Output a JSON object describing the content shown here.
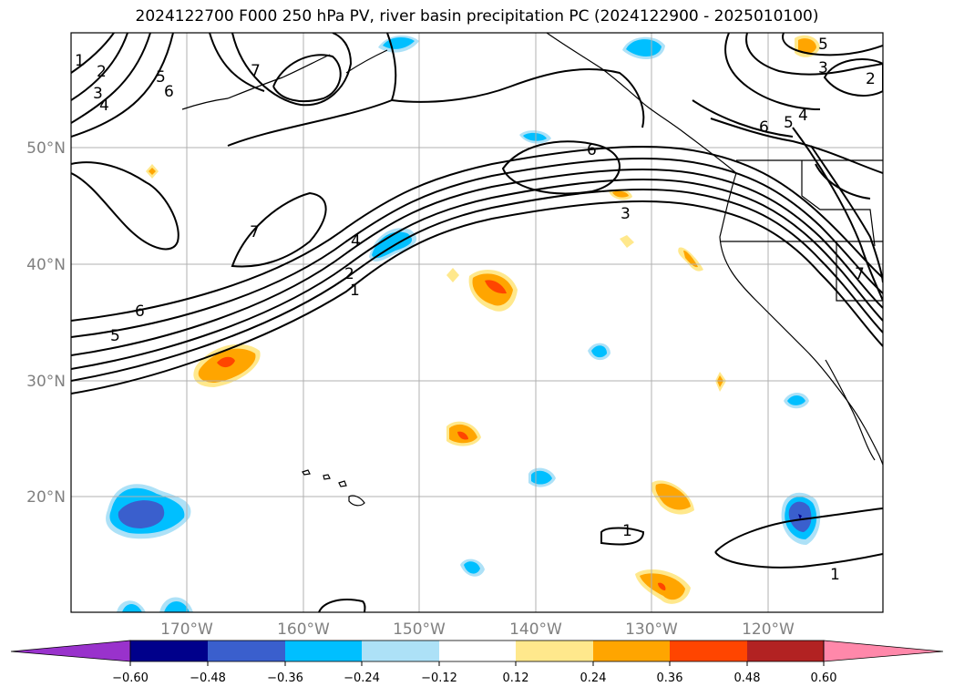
{
  "title": "2024122700 F000 250 hPa PV, river basin precipitation PC (2024122900 - 2025010100)",
  "lat_labels": [
    "50°N",
    "40°N",
    "30°N",
    "20°N"
  ],
  "lon_labels": [
    "170°W",
    "160°W",
    "150°W",
    "140°W",
    "130°W",
    "120°W"
  ],
  "contour_labels": [
    "1",
    "2",
    "3",
    "4",
    "5",
    "6",
    "7",
    "1",
    "2",
    "3",
    "4",
    "5",
    "6",
    "7",
    "1",
    "1",
    "3",
    "5",
    "6",
    "2",
    "4",
    "5",
    "6",
    "7"
  ],
  "colorbar": {
    "ticks": [
      "−0.60",
      "−0.48",
      "−0.36",
      "−0.24",
      "−0.12",
      "0.12",
      "0.24",
      "0.36",
      "0.48",
      "0.60"
    ],
    "colors": [
      "#9932CC",
      "#00008B",
      "#3A5FCD",
      "#00BFFF",
      "#ADE1F7",
      "#FFFFFF",
      "#FFE88C",
      "#FFA500",
      "#FF4500",
      "#B22222",
      "#FF88AA"
    ]
  }
}
